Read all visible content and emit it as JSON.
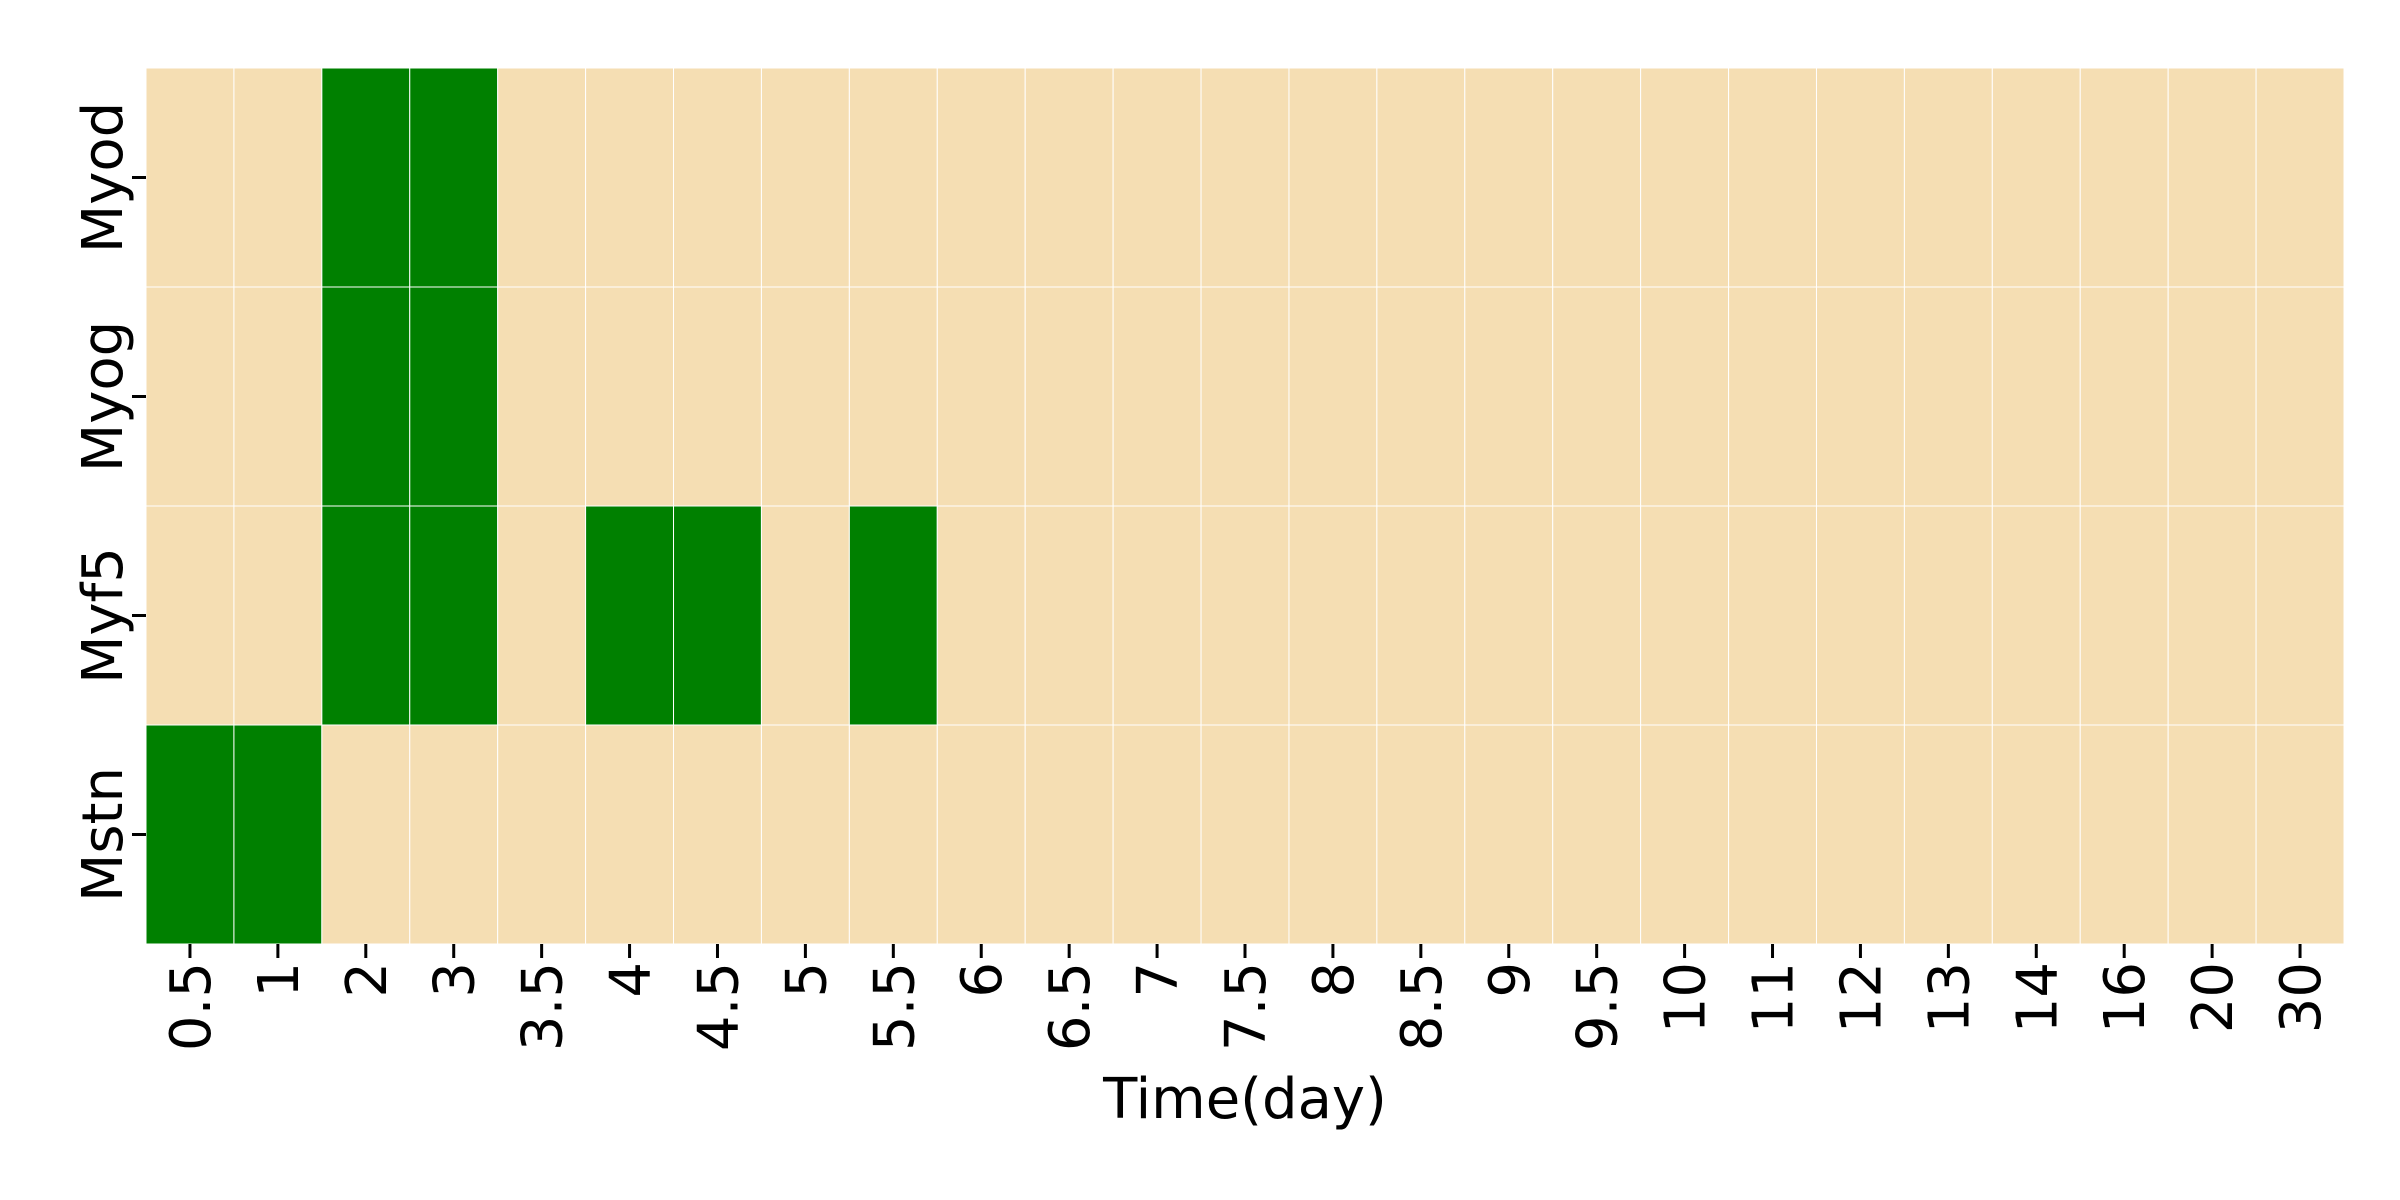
{
  "chart_data": {
    "type": "heatmap",
    "title": "",
    "xlabel": "Time(day)",
    "ylabel": "",
    "rows": [
      "Myod",
      "Myog",
      "Myf5",
      "Mstn"
    ],
    "x_categories": [
      "0.5",
      "1",
      "2",
      "3",
      "3.5",
      "4",
      "4.5",
      "5",
      "5.5",
      "6",
      "6.5",
      "7",
      "7.5",
      "8",
      "8.5",
      "9",
      "9.5",
      "10",
      "11",
      "12",
      "13",
      "14",
      "16",
      "20",
      "30"
    ],
    "values": [
      [
        0,
        0,
        1,
        1,
        0,
        0,
        0,
        0,
        0,
        0,
        0,
        0,
        0,
        0,
        0,
        0,
        0,
        0,
        0,
        0,
        0,
        0,
        0,
        0,
        0
      ],
      [
        0,
        0,
        1,
        1,
        0,
        0,
        0,
        0,
        0,
        0,
        0,
        0,
        0,
        0,
        0,
        0,
        0,
        0,
        0,
        0,
        0,
        0,
        0,
        0,
        0
      ],
      [
        0,
        0,
        1,
        1,
        0,
        1,
        1,
        0,
        1,
        0,
        0,
        0,
        0,
        0,
        0,
        0,
        0,
        0,
        0,
        0,
        0,
        0,
        0,
        0,
        0
      ],
      [
        1,
        1,
        0,
        0,
        0,
        0,
        0,
        0,
        0,
        0,
        0,
        0,
        0,
        0,
        0,
        0,
        0,
        0,
        0,
        0,
        0,
        0,
        0,
        0,
        0
      ]
    ],
    "colors": {
      "high": "#008000",
      "low": "#f5deb3",
      "cell_border": "#ffffff"
    },
    "grid": false,
    "legend": "none"
  }
}
